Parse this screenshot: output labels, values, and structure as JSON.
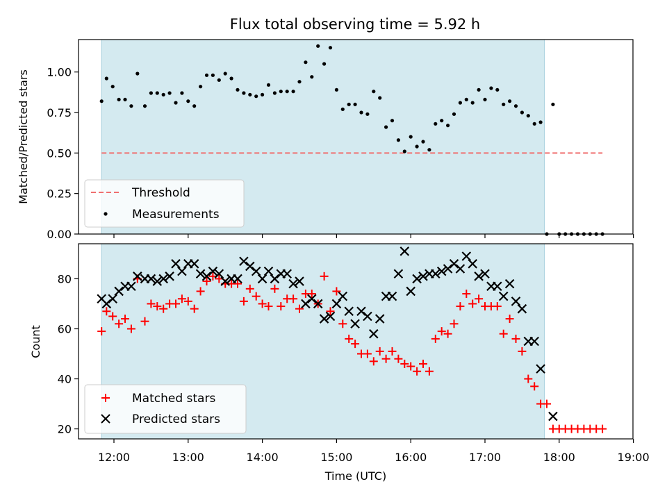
{
  "chart_data": [
    {
      "type": "scatter",
      "title": "Flux total observing time = 5.92 h",
      "ylabel": "Matched/Predicted stars",
      "xlabel": "",
      "ylim": [
        0.0,
        1.2
      ],
      "yticks": [
        "0.00",
        "0.25",
        "0.50",
        "0.75",
        "1.00"
      ],
      "xlim": [
        "11:30",
        "19:00"
      ],
      "observing_window": [
        "11:50",
        "17:48"
      ],
      "observing_window_color": "#d4eaf0",
      "threshold": {
        "name": "Threshold",
        "y": 0.5,
        "x_range": [
          "11:50",
          "18:35"
        ],
        "color": "#f07070"
      },
      "legend": [
        "Threshold",
        "Measurements"
      ],
      "legend_position": "lower left",
      "series": [
        {
          "name": "Measurements",
          "color": "#000000",
          "points": [
            [
              "11:50",
              0.82
            ],
            [
              "11:54",
              0.96
            ],
            [
              "11:59",
              0.91
            ],
            [
              "12:04",
              0.83
            ],
            [
              "12:09",
              0.83
            ],
            [
              "12:14",
              0.79
            ],
            [
              "12:19",
              0.99
            ],
            [
              "12:25",
              0.79
            ],
            [
              "12:30",
              0.87
            ],
            [
              "12:35",
              0.87
            ],
            [
              "12:40",
              0.86
            ],
            [
              "12:45",
              0.87
            ],
            [
              "12:50",
              0.81
            ],
            [
              "12:55",
              0.87
            ],
            [
              "13:00",
              0.82
            ],
            [
              "13:05",
              0.79
            ],
            [
              "13:10",
              0.91
            ],
            [
              "13:15",
              0.98
            ],
            [
              "13:20",
              0.98
            ],
            [
              "13:25",
              0.95
            ],
            [
              "13:30",
              0.99
            ],
            [
              "13:35",
              0.96
            ],
            [
              "13:40",
              0.89
            ],
            [
              "13:45",
              0.87
            ],
            [
              "13:50",
              0.86
            ],
            [
              "13:55",
              0.85
            ],
            [
              "14:00",
              0.86
            ],
            [
              "14:05",
              0.92
            ],
            [
              "14:10",
              0.87
            ],
            [
              "14:15",
              0.88
            ],
            [
              "14:20",
              0.88
            ],
            [
              "14:25",
              0.88
            ],
            [
              "14:30",
              0.94
            ],
            [
              "14:35",
              1.06
            ],
            [
              "14:40",
              0.97
            ],
            [
              "14:45",
              1.16
            ],
            [
              "14:50",
              1.05
            ],
            [
              "14:55",
              1.15
            ],
            [
              "15:00",
              0.89
            ],
            [
              "15:05",
              0.77
            ],
            [
              "15:10",
              0.8
            ],
            [
              "15:15",
              0.8
            ],
            [
              "15:20",
              0.75
            ],
            [
              "15:25",
              0.74
            ],
            [
              "15:30",
              0.88
            ],
            [
              "15:35",
              0.84
            ],
            [
              "15:40",
              0.66
            ],
            [
              "15:45",
              0.7
            ],
            [
              "15:50",
              0.58
            ],
            [
              "15:55",
              0.51
            ],
            [
              "16:00",
              0.6
            ],
            [
              "16:05",
              0.54
            ],
            [
              "16:10",
              0.57
            ],
            [
              "16:15",
              0.52
            ],
            [
              "16:20",
              0.68
            ],
            [
              "16:25",
              0.7
            ],
            [
              "16:30",
              0.67
            ],
            [
              "16:35",
              0.74
            ],
            [
              "16:40",
              0.81
            ],
            [
              "16:45",
              0.83
            ],
            [
              "16:50",
              0.81
            ],
            [
              "16:55",
              0.89
            ],
            [
              "17:00",
              0.83
            ],
            [
              "17:05",
              0.9
            ],
            [
              "17:10",
              0.89
            ],
            [
              "17:15",
              0.8
            ],
            [
              "17:20",
              0.82
            ],
            [
              "17:25",
              0.79
            ],
            [
              "17:30",
              0.75
            ],
            [
              "17:35",
              0.73
            ],
            [
              "17:40",
              0.68
            ],
            [
              "17:45",
              0.69
            ],
            [
              "17:50",
              0.0
            ],
            [
              "17:55",
              0.8
            ],
            [
              "18:00",
              0.0
            ],
            [
              "18:05",
              0.0
            ],
            [
              "18:10",
              0.0
            ],
            [
              "18:15",
              0.0
            ],
            [
              "18:20",
              0.0
            ],
            [
              "18:25",
              0.0
            ],
            [
              "18:30",
              0.0
            ],
            [
              "18:35",
              0.0
            ]
          ]
        }
      ]
    },
    {
      "type": "scatter",
      "title": "",
      "ylabel": "Count",
      "xlabel": "Time (UTC)",
      "ylim": [
        16,
        94
      ],
      "yticks": [
        "20",
        "40",
        "60",
        "80"
      ],
      "xlim": [
        "11:30",
        "19:00"
      ],
      "xticks": [
        "12:00",
        "13:00",
        "14:00",
        "15:00",
        "16:00",
        "17:00",
        "18:00",
        "19:00"
      ],
      "observing_window": [
        "11:50",
        "17:48"
      ],
      "observing_window_color": "#d4eaf0",
      "legend": [
        "Matched stars",
        "Predicted stars"
      ],
      "legend_position": "lower left",
      "series": [
        {
          "name": "Matched stars",
          "color": "#ff0000",
          "marker": "+",
          "points": [
            [
              "11:50",
              59
            ],
            [
              "11:54",
              67
            ],
            [
              "11:59",
              65
            ],
            [
              "12:04",
              62
            ],
            [
              "12:09",
              64
            ],
            [
              "12:14",
              60
            ],
            [
              "12:19",
              80
            ],
            [
              "12:25",
              63
            ],
            [
              "12:30",
              70
            ],
            [
              "12:35",
              69
            ],
            [
              "12:40",
              68
            ],
            [
              "12:45",
              70
            ],
            [
              "12:50",
              70
            ],
            [
              "12:55",
              72
            ],
            [
              "13:00",
              71
            ],
            [
              "13:05",
              68
            ],
            [
              "13:10",
              75
            ],
            [
              "13:15",
              79
            ],
            [
              "13:20",
              81
            ],
            [
              "13:25",
              80
            ],
            [
              "13:30",
              78
            ],
            [
              "13:35",
              78
            ],
            [
              "13:40",
              78
            ],
            [
              "13:45",
              71
            ],
            [
              "13:50",
              76
            ],
            [
              "13:55",
              73
            ],
            [
              "14:00",
              70
            ],
            [
              "14:05",
              69
            ],
            [
              "14:10",
              76
            ],
            [
              "14:15",
              69
            ],
            [
              "14:20",
              72
            ],
            [
              "14:25",
              72
            ],
            [
              "14:30",
              68
            ],
            [
              "14:35",
              74
            ],
            [
              "14:40",
              74
            ],
            [
              "14:45",
              70
            ],
            [
              "14:50",
              81
            ],
            [
              "14:55",
              67
            ],
            [
              "15:00",
              75
            ],
            [
              "15:05",
              62
            ],
            [
              "15:10",
              56
            ],
            [
              "15:15",
              54
            ],
            [
              "15:20",
              50
            ],
            [
              "15:25",
              50
            ],
            [
              "15:30",
              47
            ],
            [
              "15:35",
              51
            ],
            [
              "15:40",
              48
            ],
            [
              "15:45",
              51
            ],
            [
              "15:50",
              48
            ],
            [
              "15:55",
              46
            ],
            [
              "16:00",
              45
            ],
            [
              "16:05",
              43
            ],
            [
              "16:10",
              46
            ],
            [
              "16:15",
              43
            ],
            [
              "16:20",
              56
            ],
            [
              "16:25",
              59
            ],
            [
              "16:30",
              58
            ],
            [
              "16:35",
              62
            ],
            [
              "16:40",
              69
            ],
            [
              "16:45",
              74
            ],
            [
              "16:50",
              70
            ],
            [
              "16:55",
              72
            ],
            [
              "17:00",
              69
            ],
            [
              "17:05",
              69
            ],
            [
              "17:10",
              69
            ],
            [
              "17:15",
              58
            ],
            [
              "17:20",
              64
            ],
            [
              "17:25",
              56
            ],
            [
              "17:30",
              51
            ],
            [
              "17:35",
              40
            ],
            [
              "17:40",
              37
            ],
            [
              "17:45",
              30
            ],
            [
              "17:50",
              30
            ],
            [
              "17:55",
              20
            ],
            [
              "18:00",
              20
            ],
            [
              "18:05",
              20
            ],
            [
              "18:10",
              20
            ],
            [
              "18:15",
              20
            ],
            [
              "18:20",
              20
            ],
            [
              "18:25",
              20
            ],
            [
              "18:30",
              20
            ],
            [
              "18:35",
              20
            ]
          ]
        },
        {
          "name": "Predicted stars",
          "color": "#000000",
          "marker": "x",
          "points": [
            [
              "11:50",
              72
            ],
            [
              "11:54",
              70
            ],
            [
              "11:59",
              72
            ],
            [
              "12:04",
              75
            ],
            [
              "12:09",
              77
            ],
            [
              "12:14",
              77
            ],
            [
              "12:19",
              81
            ],
            [
              "12:25",
              80
            ],
            [
              "12:30",
              80
            ],
            [
              "12:35",
              79
            ],
            [
              "12:40",
              80
            ],
            [
              "12:45",
              81
            ],
            [
              "12:50",
              86
            ],
            [
              "12:55",
              83
            ],
            [
              "13:00",
              86
            ],
            [
              "13:05",
              86
            ],
            [
              "13:10",
              82
            ],
            [
              "13:15",
              81
            ],
            [
              "13:20",
              83
            ],
            [
              "13:25",
              82
            ],
            [
              "13:30",
              79
            ],
            [
              "13:35",
              80
            ],
            [
              "13:40",
              80
            ],
            [
              "13:45",
              87
            ],
            [
              "13:50",
              85
            ],
            [
              "13:55",
              83
            ],
            [
              "14:00",
              80
            ],
            [
              "14:05",
              83
            ],
            [
              "14:10",
              80
            ],
            [
              "14:15",
              82
            ],
            [
              "14:20",
              82
            ],
            [
              "14:25",
              78
            ],
            [
              "14:30",
              79
            ],
            [
              "14:35",
              70
            ],
            [
              "14:40",
              72
            ],
            [
              "14:45",
              70
            ],
            [
              "14:50",
              64
            ],
            [
              "14:55",
              65
            ],
            [
              "15:00",
              70
            ],
            [
              "15:05",
              73
            ],
            [
              "15:10",
              67
            ],
            [
              "15:15",
              62
            ],
            [
              "15:20",
              67
            ],
            [
              "15:25",
              65
            ],
            [
              "15:30",
              58
            ],
            [
              "15:35",
              64
            ],
            [
              "15:40",
              73
            ],
            [
              "15:45",
              73
            ],
            [
              "15:50",
              82
            ],
            [
              "15:55",
              91
            ],
            [
              "16:00",
              75
            ],
            [
              "16:05",
              80
            ],
            [
              "16:10",
              81
            ],
            [
              "16:15",
              82
            ],
            [
              "16:20",
              82
            ],
            [
              "16:25",
              83
            ],
            [
              "16:30",
              84
            ],
            [
              "16:35",
              86
            ],
            [
              "16:40",
              84
            ],
            [
              "16:45",
              89
            ],
            [
              "16:50",
              86
            ],
            [
              "16:55",
              81
            ],
            [
              "17:00",
              82
            ],
            [
              "17:05",
              77
            ],
            [
              "17:10",
              77
            ],
            [
              "17:15",
              73
            ],
            [
              "17:20",
              78
            ],
            [
              "17:25",
              71
            ],
            [
              "17:30",
              68
            ],
            [
              "17:35",
              55
            ],
            [
              "17:40",
              55
            ],
            [
              "17:45",
              44
            ],
            [
              "17:55",
              25
            ]
          ]
        }
      ]
    }
  ]
}
